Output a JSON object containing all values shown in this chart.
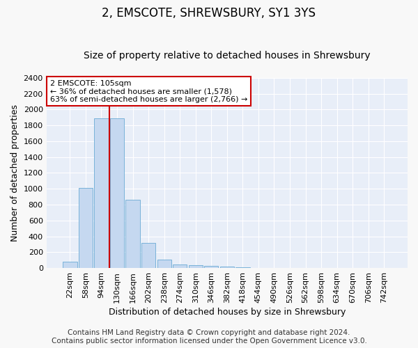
{
  "title": "2, EMSCOTE, SHREWSBURY, SY1 3YS",
  "subtitle": "Size of property relative to detached houses in Shrewsbury",
  "xlabel": "Distribution of detached houses by size in Shrewsbury",
  "ylabel": "Number of detached properties",
  "bar_labels": [
    "22sqm",
    "58sqm",
    "94sqm",
    "130sqm",
    "166sqm",
    "202sqm",
    "238sqm",
    "274sqm",
    "310sqm",
    "346sqm",
    "382sqm",
    "418sqm",
    "454sqm",
    "490sqm",
    "526sqm",
    "562sqm",
    "598sqm",
    "634sqm",
    "670sqm",
    "706sqm",
    "742sqm"
  ],
  "bar_values": [
    80,
    1010,
    1890,
    1890,
    860,
    315,
    110,
    47,
    38,
    28,
    18,
    12,
    0,
    0,
    0,
    0,
    0,
    0,
    0,
    0,
    0
  ],
  "bar_color": "#c5d8f0",
  "bar_edgecolor": "#6aaad4",
  "vline_x_idx": 2,
  "vline_color": "#cc0000",
  "ylim": [
    0,
    2400
  ],
  "yticks": [
    0,
    200,
    400,
    600,
    800,
    1000,
    1200,
    1400,
    1600,
    1800,
    2000,
    2200,
    2400
  ],
  "annotation_text": "2 EMSCOTE: 105sqm\n← 36% of detached houses are smaller (1,578)\n63% of semi-detached houses are larger (2,766) →",
  "annotation_box_color": "#ffffff",
  "annotation_box_edgecolor": "#cc0000",
  "footer_line1": "Contains HM Land Registry data © Crown copyright and database right 2024.",
  "footer_line2": "Contains public sector information licensed under the Open Government Licence v3.0.",
  "plot_bg_color": "#e8eef8",
  "fig_bg_color": "#f8f8f8",
  "grid_color": "#ffffff",
  "title_fontsize": 12,
  "subtitle_fontsize": 10,
  "axis_label_fontsize": 9,
  "tick_fontsize": 8,
  "annotation_fontsize": 8,
  "footer_fontsize": 7.5
}
